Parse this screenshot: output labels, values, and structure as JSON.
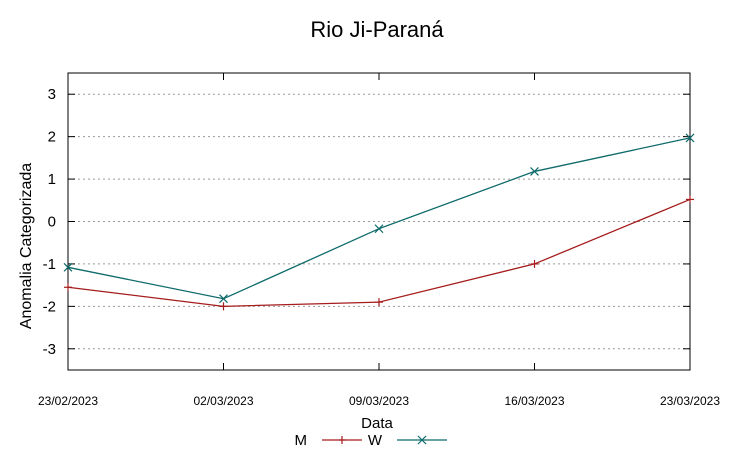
{
  "chart_data": {
    "type": "line",
    "title": "Rio Ji-Paraná",
    "xlabel": "Data",
    "ylabel": "Anomalia Categorizada",
    "x": [
      "23/02/2023",
      "02/03/2023",
      "09/03/2023",
      "16/03/2023",
      "23/03/2023"
    ],
    "ylim": [
      -3.5,
      3.5
    ],
    "yticks": [
      "-3",
      "-2",
      "-1",
      "0",
      "1",
      "2",
      "3"
    ],
    "grid": true,
    "legend_position": "bottom-center",
    "series": [
      {
        "name": "M",
        "marker": "+",
        "color": "#a61c1c",
        "values": [
          -1.55,
          -2.0,
          -1.9,
          -1.0,
          0.52
        ]
      },
      {
        "name": "W",
        "marker": "x",
        "color": "#0f6b6b",
        "values": [
          -1.08,
          -1.82,
          -0.17,
          1.18,
          1.97
        ]
      }
    ]
  }
}
